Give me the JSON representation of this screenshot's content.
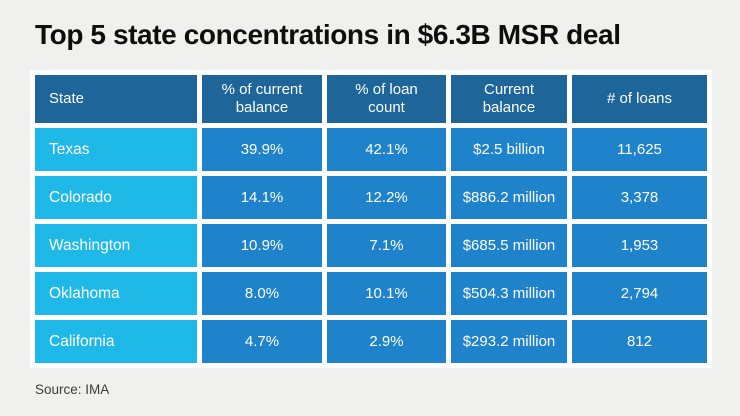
{
  "chart_data": {
    "type": "table",
    "title": "Top 5 state concentrations in $6.3B MSR deal",
    "columns": [
      "State",
      "% of current balance",
      "% of loan count",
      "Current balance",
      "# of loans"
    ],
    "rows": [
      [
        "Texas",
        "39.9%",
        "42.1%",
        "$2.5 billion",
        "11,625"
      ],
      [
        "Colorado",
        "14.1%",
        "12.2%",
        "$886.2 million",
        "3,378"
      ],
      [
        "Washington",
        "10.9%",
        "7.1%",
        "$685.5 million",
        "1,953"
      ],
      [
        "Oklahoma",
        "8.0%",
        "10.1%",
        "$504.3 million",
        "2,794"
      ],
      [
        "California",
        "4.7%",
        "2.9%",
        "$293.2 million",
        "812"
      ]
    ],
    "source": "Source: IMA",
    "legend": "none",
    "grid": "white cell separators"
  },
  "colors": {
    "page_bg": "#f0f0ef",
    "header_blue": "#1e6599",
    "cell_blue": "#1e83cb",
    "state_cyan": "#1fb9e8",
    "grid_white": "#ffffff",
    "title_text": "#0e0e0e",
    "source_text": "#3c3c3c",
    "cell_text": "#ffffff"
  }
}
